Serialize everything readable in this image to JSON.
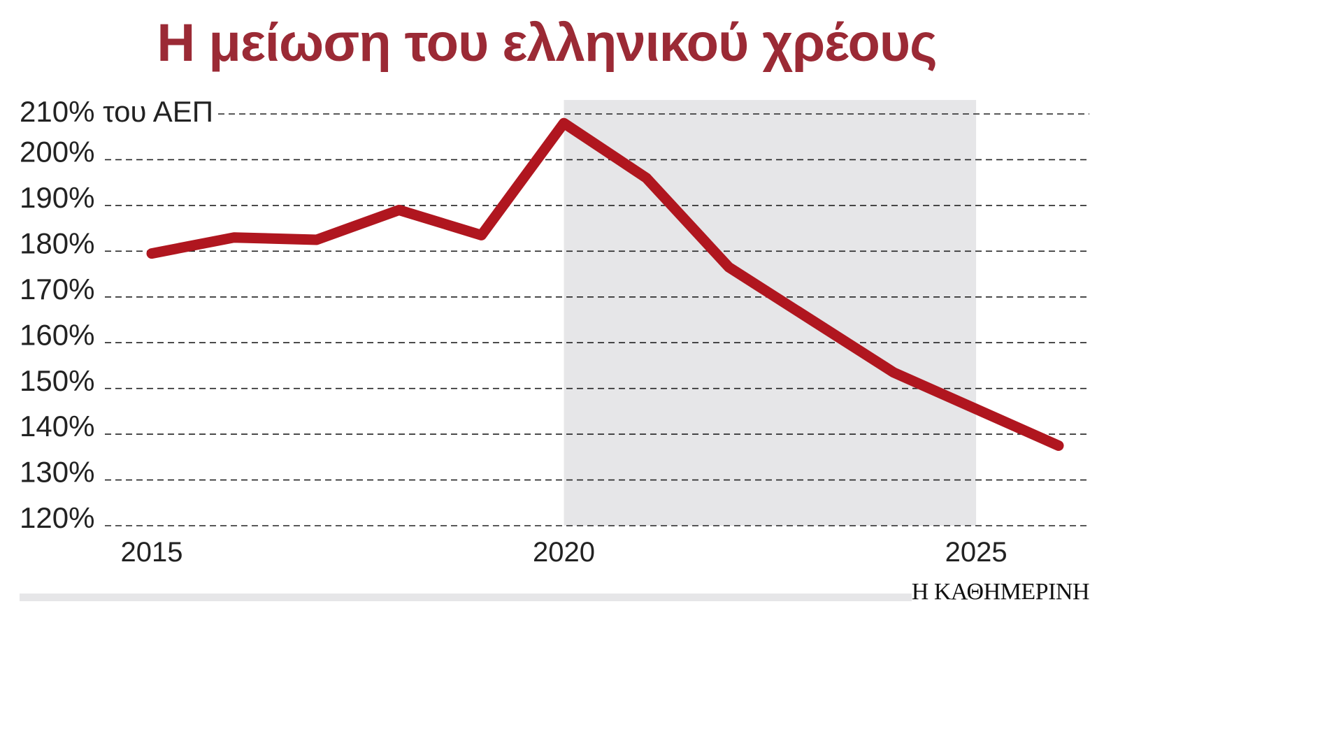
{
  "title": "Η μείωση του ελληνικού χρέους",
  "brand": "Η ΚΑΘΗΜΕΡΙΝΗ",
  "colors": {
    "title": "#9b2a35",
    "line": "#b0161f",
    "highlight": "#e6e6e8",
    "grid": "#222222"
  },
  "chart_data": {
    "type": "line",
    "title": "Η μείωση του ελληνικού χρέους",
    "xlabel": "",
    "ylabel": "",
    "y_unit_label": "210% του ΑΕΠ",
    "y_ticks": [
      "120%",
      "130%",
      "140%",
      "150%",
      "160%",
      "170%",
      "180%",
      "190%",
      "200%",
      "210%"
    ],
    "y_tick_values": [
      120,
      130,
      140,
      150,
      160,
      170,
      180,
      190,
      200,
      210
    ],
    "x_ticks": [
      "2015",
      "2020",
      "2025"
    ],
    "x_tick_values": [
      2015,
      2020,
      2025
    ],
    "ylim": [
      120,
      210
    ],
    "xlim": [
      2014.5,
      2026.5
    ],
    "grid": true,
    "highlight_range": [
      2020,
      2025
    ],
    "series": [
      {
        "x": [
          2015,
          2016,
          2017,
          2018,
          2019,
          2020,
          2021,
          2022,
          2023,
          2024,
          2025,
          2026
        ],
        "values": [
          179.5,
          183,
          182.5,
          189,
          183.5,
          208,
          196,
          176.5,
          165,
          153.5,
          145.5,
          137.5
        ]
      }
    ]
  }
}
